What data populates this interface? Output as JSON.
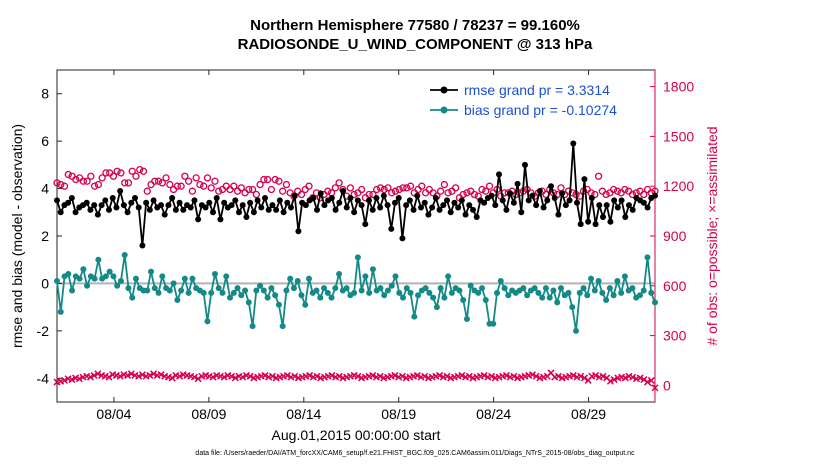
{
  "chart_data": {
    "type": "line",
    "title": "Northern Hemisphere 77580 / 78237 = 99.160%",
    "subtitle": "RADIOSONDE_U_WIND_COMPONENT @ 313 hPa",
    "xlabel": "Aug.01,2015 00:00:00 start",
    "ylabel_left": "rmse and bias (model - observation)",
    "ylabel_right": "# of obs: o=possible; ×=assimilated",
    "left_ylim": [
      -5,
      9
    ],
    "right_ylim": [
      -100,
      1900
    ],
    "x_range": [
      1.0,
      32.5
    ],
    "left_ticks": [
      "-4",
      "-2",
      "0",
      "2",
      "4",
      "6",
      "8"
    ],
    "right_ticks": [
      "0",
      "300",
      "600",
      "900",
      "1200",
      "1500",
      "1800"
    ],
    "x_ticks": [
      {
        "label": "08/04",
        "day": 4.0
      },
      {
        "label": "08/09",
        "day": 9.0
      },
      {
        "label": "08/14",
        "day": 14.0
      },
      {
        "label": "08/19",
        "day": 19.0
      },
      {
        "label": "08/24",
        "day": 24.0
      },
      {
        "label": "08/29",
        "day": 29.0
      }
    ],
    "zero_line": 0,
    "legend": {
      "position": "top-right",
      "entries": [
        "rmse grand pr = 3.3314",
        "bias grand pr = -0.10274"
      ]
    },
    "series": [
      {
        "name": "rmse grand pr = 3.3314",
        "axis": "left",
        "color": "#000000",
        "values": [
          3.5,
          3.0,
          3.3,
          3.4,
          3.6,
          3.0,
          3.2,
          3.3,
          3.4,
          3.1,
          3.3,
          2.9,
          3.3,
          3.5,
          3.1,
          3.6,
          3.2,
          3.9,
          3.3,
          3.0,
          3.4,
          3.6,
          3.2,
          1.6,
          3.4,
          3.1,
          3.5,
          3.2,
          3.3,
          2.9,
          3.3,
          3.6,
          3.1,
          3.4,
          3.1,
          3.3,
          3.2,
          3.5,
          2.7,
          3.3,
          3.2,
          3.4,
          3.0,
          3.6,
          2.7,
          3.4,
          3.2,
          3.3,
          3.5,
          3.0,
          3.3,
          2.8,
          3.4,
          3.0,
          3.5,
          3.2,
          3.6,
          3.1,
          3.3,
          3.1,
          3.5,
          3.0,
          3.4,
          3.2,
          3.7,
          2.2,
          3.4,
          3.3,
          3.5,
          3.6,
          3.1,
          3.8,
          3.3,
          3.5,
          3.6,
          3.1,
          3.4,
          3.9,
          3.2,
          3.6,
          3.0,
          3.5,
          3.3,
          2.5,
          3.5,
          3.1,
          3.6,
          3.2,
          3.7,
          3.3,
          2.3,
          3.4,
          3.6,
          1.9,
          3.3,
          3.5,
          3.1,
          3.7,
          3.2,
          3.4,
          2.9,
          3.2,
          3.6,
          3.1,
          3.3,
          3.5,
          3.0,
          3.4,
          3.2,
          3.5,
          2.9,
          3.3,
          3.1,
          2.8,
          3.5,
          3.4,
          3.6,
          3.7,
          3.3,
          4.6,
          3.5,
          3.1,
          3.8,
          3.4,
          4.2,
          3.0,
          5.0,
          3.5,
          3.7,
          3.3,
          3.9,
          3.2,
          3.5,
          4.1,
          3.6,
          2.9,
          3.8,
          3.3,
          3.5,
          5.9,
          3.4,
          2.5,
          4.4,
          2.6,
          3.6,
          2.5,
          3.3,
          2.8,
          3.3,
          2.6,
          3.5,
          3.2,
          3.5,
          2.8,
          3.3,
          3.1,
          3.6,
          3.5,
          3.4,
          3.2,
          3.6,
          3.7
        ]
      },
      {
        "name": "bias grand pr = -0.10274",
        "axis": "left",
        "color": "#138a87",
        "values": [
          0.1,
          -1.2,
          0.3,
          0.4,
          -0.3,
          0.3,
          0.2,
          0.6,
          -0.1,
          0.3,
          0.2,
          1.0,
          0.2,
          0.3,
          0.5,
          0.3,
          -0.1,
          0.1,
          1.2,
          -0.2,
          -0.6,
          0.2,
          -0.2,
          -0.3,
          -0.3,
          0.5,
          -0.2,
          -0.4,
          0.3,
          -0.2,
          -0.3,
          0.0,
          -0.7,
          -0.3,
          0.2,
          -0.4,
          0.2,
          -0.2,
          -0.3,
          -0.4,
          -1.6,
          -0.4,
          0.4,
          -0.2,
          -0.4,
          0.3,
          -0.6,
          -0.4,
          -0.2,
          -0.5,
          -0.3,
          -0.8,
          -1.8,
          -0.3,
          -0.1,
          -0.3,
          -0.6,
          -0.2,
          -0.5,
          -0.9,
          -1.8,
          -0.3,
          0.2,
          -0.2,
          0.1,
          -0.5,
          -0.9,
          0.2,
          -0.4,
          -0.3,
          -0.6,
          -0.2,
          -0.4,
          -0.6,
          -0.2,
          0.4,
          -0.3,
          -0.2,
          -0.5,
          -0.4,
          1.1,
          -0.3,
          0.3,
          -0.4,
          0.6,
          -0.3,
          -0.2,
          -0.5,
          -0.3,
          -0.1,
          0.3,
          -0.4,
          -0.6,
          -0.2,
          -0.4,
          -1.4,
          -0.5,
          -0.3,
          -0.2,
          -0.4,
          -0.6,
          -1.0,
          -0.2,
          -0.6,
          0.3,
          -0.4,
          -0.2,
          -0.3,
          -0.7,
          -1.5,
          -0.1,
          -0.3,
          -0.4,
          -0.2,
          -0.7,
          -1.7,
          -1.7,
          -0.4,
          0.1,
          -0.2,
          -0.5,
          -0.3,
          -0.4,
          -0.3,
          -0.2,
          -0.5,
          -0.3,
          -0.2,
          -0.4,
          -0.6,
          -0.2,
          -0.6,
          -0.3,
          -0.8,
          -0.2,
          -0.5,
          -0.4,
          -1.0,
          -2.0,
          -0.4,
          -0.2,
          -0.5,
          0.2,
          -0.3,
          0.1,
          -0.4,
          -0.7,
          -0.2,
          -0.5,
          0.1,
          -0.4,
          0.3,
          -0.3,
          -0.2,
          -0.6,
          -0.5,
          -0.3,
          1.1,
          -0.4,
          -0.8
        ]
      },
      {
        "name": "possible",
        "marker": "o",
        "axis": "right",
        "color": "#d6004f",
        "values": [
          1220,
          1210,
          1200,
          1270,
          1260,
          1240,
          1250,
          1230,
          1230,
          1260,
          1200,
          1210,
          1250,
          1280,
          1280,
          1260,
          1290,
          1280,
          1220,
          1220,
          1290,
          1260,
          1300,
          1290,
          1170,
          1210,
          1230,
          1230,
          1220,
          1250,
          1210,
          1180,
          1200,
          1200,
          1260,
          1230,
          1170,
          1250,
          1210,
          1200,
          1250,
          1190,
          1230,
          1170,
          1180,
          1200,
          1180,
          1200,
          1170,
          1190,
          1160,
          1180,
          1180,
          1150,
          1210,
          1240,
          1240,
          1180,
          1240,
          1230,
          1170,
          1210,
          1160,
          1140,
          1170,
          1150,
          1180,
          1200,
          1130,
          1160,
          1130,
          1150,
          1170,
          1160,
          1190,
          1220,
          1180,
          1140,
          1190,
          1150,
          1160,
          1180,
          1130,
          1150,
          1150,
          1180,
          1190,
          1180,
          1190,
          1160,
          1170,
          1180,
          1190,
          1190,
          1200,
          1160,
          1180,
          1200,
          1160,
          1180,
          1160,
          1140,
          1170,
          1210,
          1160,
          1170,
          1190,
          1130,
          1150,
          1160,
          1170,
          1150,
          1140,
          1180,
          1170,
          1200,
          1160,
          1180,
          1140,
          1160,
          1160,
          1170,
          1150,
          1160,
          1170,
          1180,
          1160,
          1140,
          1160,
          1170,
          1150,
          1180,
          1160,
          1150,
          1190,
          1150,
          1170,
          1160,
          1150,
          1140,
          1170,
          1180,
          1160,
          1150,
          1260,
          1170,
          1150,
          1160,
          1180,
          1170,
          1160,
          1180,
          1170,
          1150,
          1160,
          1170,
          1150,
          1180,
          1160,
          1170
        ]
      },
      {
        "name": "assimilated",
        "marker": "x",
        "axis": "right",
        "color": "#d6004f",
        "values": [
          20,
          25,
          30,
          40,
          35,
          45,
          40,
          50,
          55,
          50,
          60,
          70,
          60,
          55,
          50,
          65,
          60,
          55,
          65,
          60,
          70,
          60,
          55,
          65,
          55,
          60,
          70,
          60,
          65,
          55,
          50,
          45,
          60,
          55,
          65,
          60,
          55,
          50,
          40,
          55,
          60,
          55,
          50,
          60,
          55,
          50,
          60,
          55,
          45,
          55,
          50,
          60,
          55,
          45,
          50,
          55,
          60,
          50,
          55,
          45,
          50,
          55,
          60,
          50,
          55,
          45,
          50,
          55,
          60,
          50,
          55,
          45,
          50,
          55,
          60,
          50,
          55,
          45,
          50,
          55,
          60,
          55,
          45,
          50,
          55,
          60,
          50,
          55,
          45,
          50,
          55,
          60,
          50,
          55,
          45,
          50,
          55,
          60,
          50,
          55,
          45,
          50,
          55,
          60,
          50,
          55,
          45,
          50,
          55,
          60,
          50,
          55,
          45,
          50,
          55,
          60,
          50,
          55,
          45,
          50,
          55,
          60,
          50,
          55,
          45,
          50,
          55,
          60,
          65,
          55,
          45,
          50,
          55,
          75,
          50,
          55,
          45,
          50,
          55,
          60,
          50,
          55,
          45,
          30,
          55,
          60,
          50,
          55,
          45,
          25,
          35,
          45,
          50,
          45,
          55,
          50,
          40,
          45,
          35,
          20,
          30,
          -15
        ]
      }
    ]
  },
  "footer_text": "data file: /Users/raeder/DAI/ATM_forcXX/CAM6_setup/f.e21.FHIST_BGC.f09_025.CAM6assim.011/Diags_NTrS_2015-08/obs_diag_output.nc"
}
